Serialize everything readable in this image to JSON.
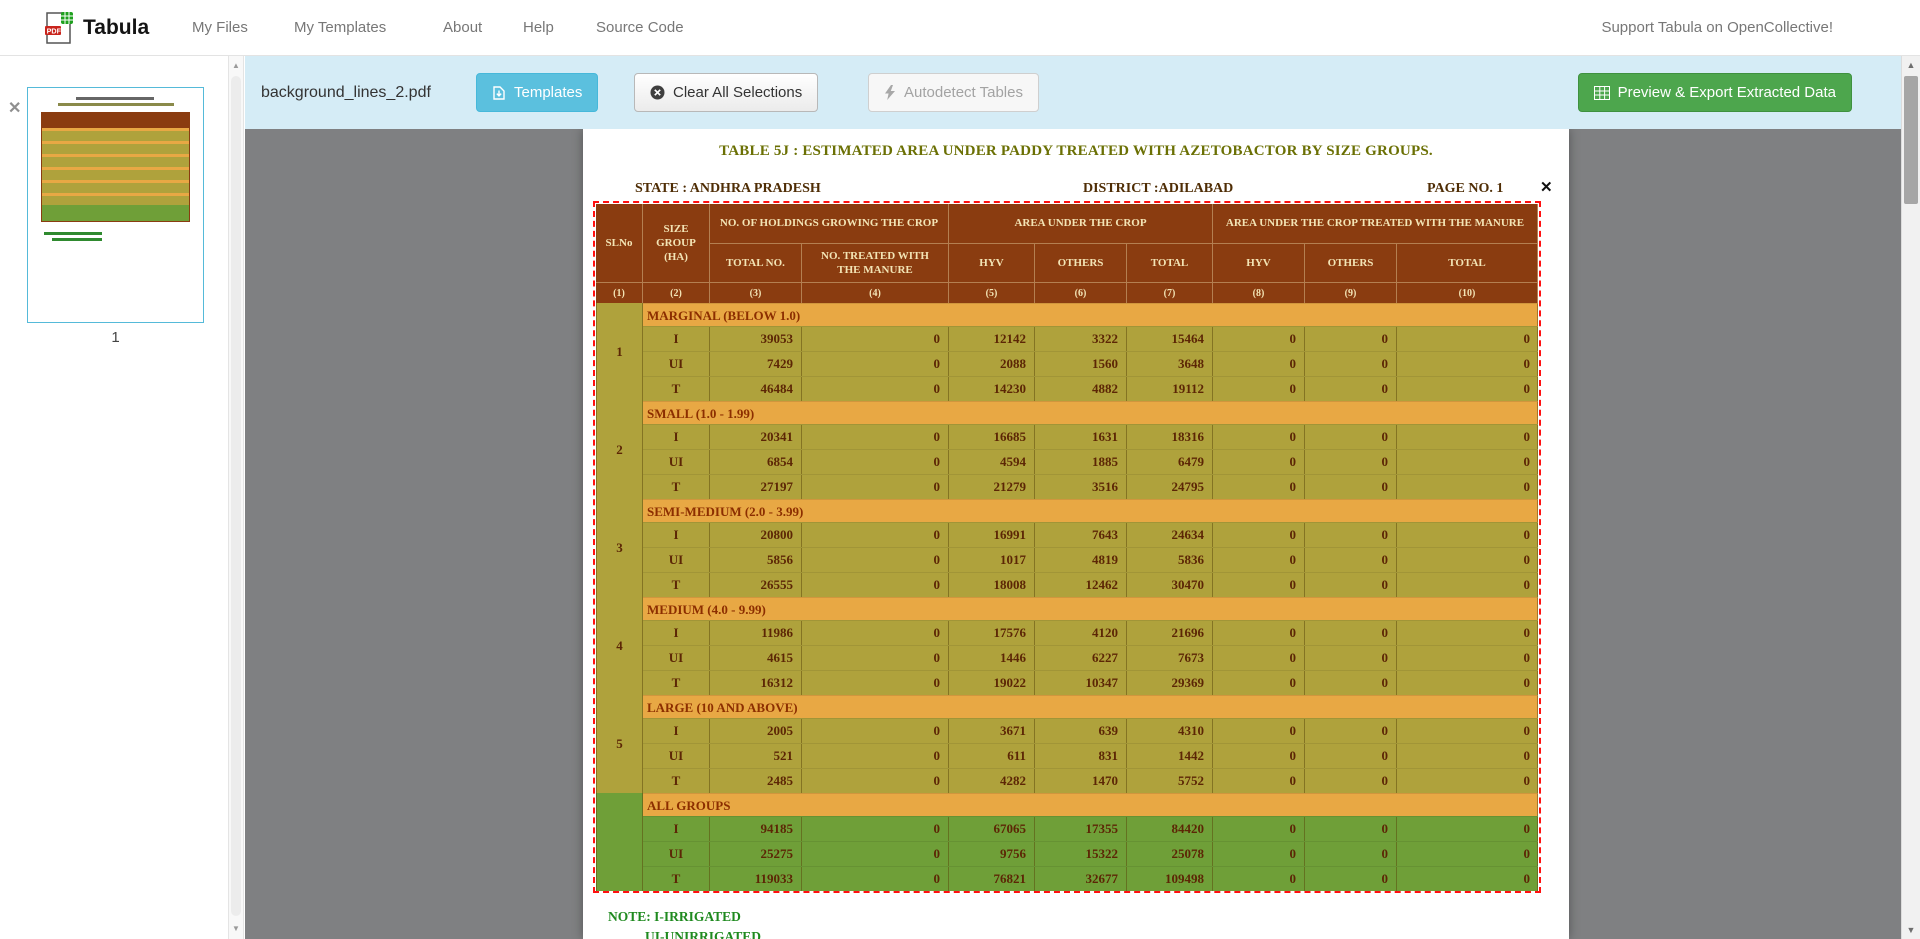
{
  "navbar": {
    "brand": "Tabula",
    "items": [
      {
        "label": "My Files"
      },
      {
        "label": "My Templates"
      },
      {
        "label": "About"
      },
      {
        "label": "Help"
      },
      {
        "label": "Source Code"
      }
    ],
    "support_link": "Support Tabula on OpenCollective!"
  },
  "toolbar": {
    "filename": "background_lines_2.pdf",
    "templates": "Templates",
    "clear_selections": "Clear All Selections",
    "autodetect": "Autodetect Tables",
    "export": "Preview & Export Extracted Data"
  },
  "sidebar": {
    "page_number": "1"
  },
  "icons": {
    "close": "✕",
    "scroll_up": "▲",
    "scroll_down": "▼"
  },
  "document": {
    "title": "TABLE 5J : ESTIMATED AREA UNDER PADDY  TREATED WITH AZETOBACTOR BY SIZE GROUPS.",
    "state": "STATE : ANDHRA PRADESH",
    "district": "DISTRICT :ADILABAD",
    "page_no": "PAGE NO. 1",
    "notes": [
      "NOTE: I-IRRIGATED",
      "UI-UNIRRIGATED"
    ],
    "table": {
      "headers": {
        "slno": "SLNo",
        "size_group": "SIZE GROUP (HA)",
        "holdings_group": "NO. OF HOLDINGS GROWING THE CROP",
        "area_group": "AREA UNDER THE CROP",
        "treated_group": "AREA UNDER THE CROP TREATED WITH THE MANURE",
        "sub": [
          "TOTAL NO.",
          "NO. TREATED WITH THE MANURE",
          "HYV",
          "OTHERS",
          "TOTAL",
          "HYV",
          "OTHERS",
          "TOTAL"
        ],
        "col_numbers": [
          "(1)",
          "(2)",
          "(3)",
          "(4)",
          "(5)",
          "(6)",
          "(7)",
          "(8)",
          "(9)",
          "(10)"
        ]
      },
      "groups": [
        {
          "slno": "1",
          "label": "MARGINAL (BELOW 1.0)",
          "highlight": false,
          "rows": [
            {
              "code": "I",
              "values": [
                "39053",
                "0",
                "12142",
                "3322",
                "15464",
                "0",
                "0",
                "0"
              ]
            },
            {
              "code": "UI",
              "values": [
                "7429",
                "0",
                "2088",
                "1560",
                "3648",
                "0",
                "0",
                "0"
              ]
            },
            {
              "code": "T",
              "values": [
                "46484",
                "0",
                "14230",
                "4882",
                "19112",
                "0",
                "0",
                "0"
              ]
            }
          ]
        },
        {
          "slno": "2",
          "label": "SMALL (1.0 - 1.99)",
          "highlight": false,
          "rows": [
            {
              "code": "I",
              "values": [
                "20341",
                "0",
                "16685",
                "1631",
                "18316",
                "0",
                "0",
                "0"
              ]
            },
            {
              "code": "UI",
              "values": [
                "6854",
                "0",
                "4594",
                "1885",
                "6479",
                "0",
                "0",
                "0"
              ]
            },
            {
              "code": "T",
              "values": [
                "27197",
                "0",
                "21279",
                "3516",
                "24795",
                "0",
                "0",
                "0"
              ]
            }
          ]
        },
        {
          "slno": "3",
          "label": "SEMI-MEDIUM (2.0 - 3.99)",
          "highlight": false,
          "rows": [
            {
              "code": "I",
              "values": [
                "20800",
                "0",
                "16991",
                "7643",
                "24634",
                "0",
                "0",
                "0"
              ]
            },
            {
              "code": "UI",
              "values": [
                "5856",
                "0",
                "1017",
                "4819",
                "5836",
                "0",
                "0",
                "0"
              ]
            },
            {
              "code": "T",
              "values": [
                "26555",
                "0",
                "18008",
                "12462",
                "30470",
                "0",
                "0",
                "0"
              ]
            }
          ]
        },
        {
          "slno": "4",
          "label": "MEDIUM (4.0 - 9.99)",
          "highlight": false,
          "rows": [
            {
              "code": "I",
              "values": [
                "11986",
                "0",
                "17576",
                "4120",
                "21696",
                "0",
                "0",
                "0"
              ]
            },
            {
              "code": "UI",
              "values": [
                "4615",
                "0",
                "1446",
                "6227",
                "7673",
                "0",
                "0",
                "0"
              ]
            },
            {
              "code": "T",
              "values": [
                "16312",
                "0",
                "19022",
                "10347",
                "29369",
                "0",
                "0",
                "0"
              ]
            }
          ]
        },
        {
          "slno": "5",
          "label": "LARGE (10 AND ABOVE)",
          "highlight": false,
          "rows": [
            {
              "code": "I",
              "values": [
                "2005",
                "0",
                "3671",
                "639",
                "4310",
                "0",
                "0",
                "0"
              ]
            },
            {
              "code": "UI",
              "values": [
                "521",
                "0",
                "611",
                "831",
                "1442",
                "0",
                "0",
                "0"
              ]
            },
            {
              "code": "T",
              "values": [
                "2485",
                "0",
                "4282",
                "1470",
                "5752",
                "0",
                "0",
                "0"
              ]
            }
          ]
        },
        {
          "slno": "",
          "label": "ALL GROUPS",
          "highlight": true,
          "rows": [
            {
              "code": "I",
              "values": [
                "94185",
                "0",
                "67065",
                "17355",
                "84420",
                "0",
                "0",
                "0"
              ]
            },
            {
              "code": "UI",
              "values": [
                "25275",
                "0",
                "9756",
                "15322",
                "25078",
                "0",
                "0",
                "0"
              ]
            },
            {
              "code": "T",
              "values": [
                "119033",
                "0",
                "76821",
                "32677",
                "109498",
                "0",
                "0",
                "0"
              ]
            }
          ]
        }
      ]
    }
  },
  "colors": {
    "accent_blue": "#5bc0de",
    "accent_green": "#4da64d",
    "toolbar_bg": "#d5ecf6",
    "selection_red": "#ff1010",
    "table_header_bg": "#8a3c10",
    "table_body_bg": "#afa23c",
    "table_label_bg": "#e8a844",
    "table_allgroups_bg": "#6f9f38"
  }
}
